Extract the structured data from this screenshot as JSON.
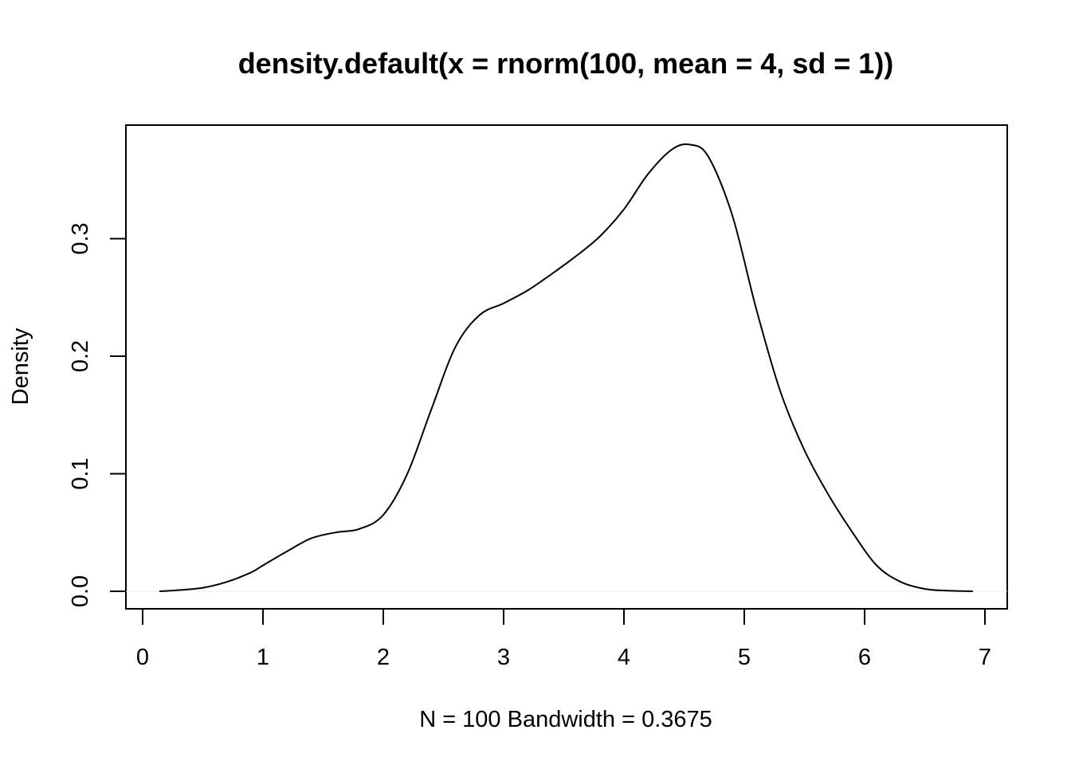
{
  "chart_data": {
    "type": "line",
    "title": "density.default(x = rnorm(100, mean = 4, sd = 1))",
    "xlabel": "N = 100   Bandwidth = 0.3675",
    "ylabel": "Density",
    "xlim": [
      0,
      7
    ],
    "ylim": [
      0,
      0.38
    ],
    "x_ticks": [
      "0",
      "1",
      "2",
      "3",
      "4",
      "5",
      "6",
      "7"
    ],
    "y_ticks": [
      "0.0",
      "0.1",
      "0.2",
      "0.3"
    ],
    "grid": false,
    "legend": "none",
    "series": [
      {
        "x": [
          0.14,
          0.3,
          0.5,
          0.7,
          0.9,
          1.0,
          1.2,
          1.4,
          1.6,
          1.8,
          2.0,
          2.2,
          2.4,
          2.6,
          2.8,
          3.0,
          3.2,
          3.4,
          3.6,
          3.8,
          4.0,
          4.2,
          4.4,
          4.55,
          4.7,
          4.9,
          5.1,
          5.3,
          5.5,
          5.7,
          5.9,
          6.1,
          6.3,
          6.5,
          6.7,
          6.9
        ],
        "values": [
          0.0,
          0.001,
          0.003,
          0.008,
          0.016,
          0.022,
          0.034,
          0.045,
          0.05,
          0.053,
          0.065,
          0.1,
          0.155,
          0.208,
          0.235,
          0.245,
          0.256,
          0.27,
          0.285,
          0.302,
          0.325,
          0.355,
          0.376,
          0.38,
          0.37,
          0.32,
          0.24,
          0.17,
          0.12,
          0.082,
          0.05,
          0.022,
          0.008,
          0.002,
          0.0005,
          0.0
        ]
      }
    ]
  }
}
